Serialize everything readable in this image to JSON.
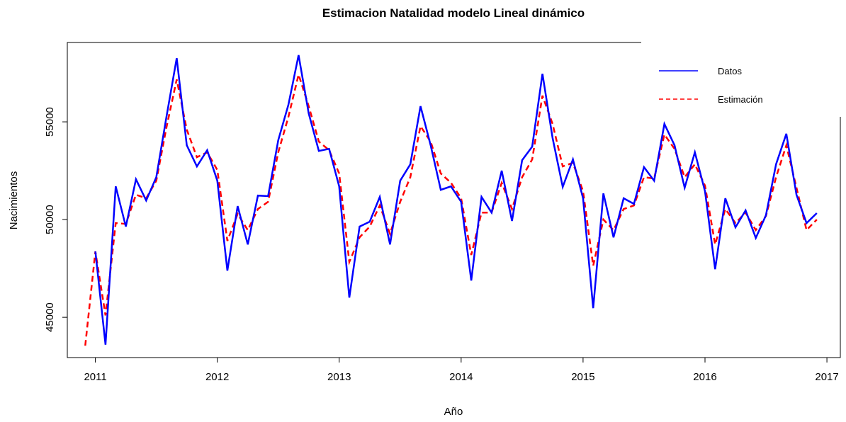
{
  "chart_data": {
    "type": "line",
    "title": "Estimacion Natalidad modelo Lineal dinámico",
    "xlabel": "Año",
    "ylabel": "Nacimientos",
    "x": [
      2010.917,
      2011,
      2011.083,
      2011.167,
      2011.25,
      2011.333,
      2011.417,
      2011.5,
      2011.583,
      2011.667,
      2011.75,
      2011.833,
      2011.917,
      2012,
      2012.083,
      2012.167,
      2012.25,
      2012.333,
      2012.417,
      2012.5,
      2012.583,
      2012.667,
      2012.75,
      2012.833,
      2012.917,
      2013,
      2013.083,
      2013.167,
      2013.25,
      2013.333,
      2013.417,
      2013.5,
      2013.583,
      2013.667,
      2013.75,
      2013.833,
      2013.917,
      2014,
      2014.083,
      2014.167,
      2014.25,
      2014.333,
      2014.417,
      2014.5,
      2014.583,
      2014.667,
      2014.75,
      2014.833,
      2014.917,
      2015,
      2015.083,
      2015.167,
      2015.25,
      2015.333,
      2015.417,
      2015.5,
      2015.583,
      2015.667,
      2015.75,
      2015.833,
      2015.917,
      2016,
      2016.083,
      2016.167,
      2016.25,
      2016.333,
      2016.417,
      2016.5,
      2016.583,
      2016.667,
      2016.75,
      2016.833,
      2016.917
    ],
    "series": [
      {
        "name": "Datos",
        "color": "#0000ff",
        "dash": "solid",
        "values": [
          null,
          48370,
          43600,
          51700,
          49640,
          52060,
          50980,
          52170,
          55250,
          58260,
          53800,
          52720,
          53550,
          51990,
          47390,
          50690,
          48730,
          51230,
          51200,
          54060,
          55870,
          58410,
          55430,
          53510,
          53620,
          51700,
          46010,
          49640,
          49890,
          51160,
          48730,
          51990,
          52830,
          55800,
          53800,
          51520,
          51700,
          50910,
          46880,
          51160,
          50360,
          52500,
          49930,
          53040,
          53730,
          57460,
          54170,
          51670,
          53080,
          51090,
          45470,
          51340,
          49090,
          51090,
          50800,
          52680,
          51990,
          54890,
          53800,
          51630,
          53440,
          51450,
          47460,
          51090,
          49600,
          50470,
          49060,
          50220,
          52830,
          54390,
          51270,
          49820,
          50330
        ]
      },
      {
        "name": "Estimación",
        "color": "#ff0000",
        "dash": "dashed",
        "values": [
          43550,
          48370,
          45100,
          49820,
          49780,
          51270,
          51090,
          51990,
          54710,
          57170,
          54600,
          53190,
          53440,
          52540,
          48910,
          50290,
          49460,
          50540,
          50910,
          53440,
          55250,
          57420,
          55800,
          53990,
          53550,
          52360,
          47830,
          49090,
          49640,
          50720,
          49270,
          50910,
          52170,
          54780,
          53990,
          52360,
          51880,
          51090,
          48190,
          50360,
          50360,
          51880,
          50540,
          52170,
          53080,
          56340,
          54890,
          52720,
          52900,
          51450,
          47640,
          50000,
          49460,
          50540,
          50720,
          52170,
          52100,
          54350,
          53620,
          52170,
          52830,
          51740,
          48730,
          50540,
          49820,
          50360,
          49460,
          50180,
          52170,
          53800,
          51630,
          49460,
          50000
        ]
      }
    ],
    "xlim": [
      2010.77,
      2017.11
    ],
    "xticks": [
      2011,
      2012,
      2013,
      2014,
      2015,
      2016,
      2017
    ],
    "ylim": [
      42940,
      59060
    ],
    "yticks": [
      45000,
      50000,
      55000
    ],
    "legend": "top-right"
  }
}
